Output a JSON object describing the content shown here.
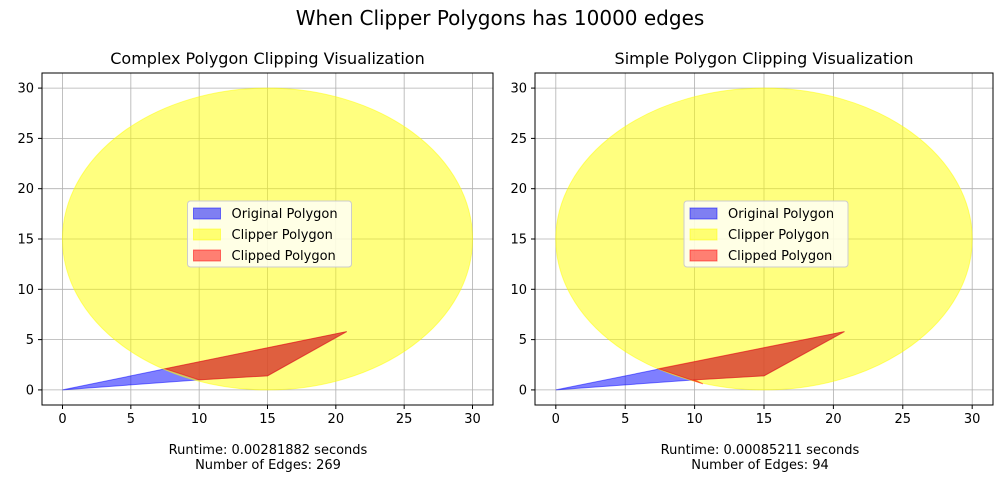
{
  "figure": {
    "suptitle": "When Clipper Polygons has 10000 edges"
  },
  "chart_data": [
    {
      "type": "area",
      "title": "Complex Polygon Clipping Visualization",
      "xlim": [
        -1.5,
        31.5
      ],
      "ylim": [
        -1.5,
        31.5
      ],
      "xticks": [
        0,
        5,
        10,
        15,
        20,
        25,
        30
      ],
      "yticks": [
        0,
        5,
        10,
        15,
        20,
        25,
        30
      ],
      "grid": true,
      "legend_position": "center",
      "series": [
        {
          "name": "Original Polygon",
          "color": "#0000ff",
          "alpha": 0.5,
          "points": [
            [
              0,
              0
            ],
            [
              20.8,
              5.8
            ],
            [
              15,
              1.4
            ],
            [
              10,
              1.0
            ]
          ]
        },
        {
          "name": "Clipper Polygon",
          "color": "#ffff00",
          "alpha": 0.5,
          "shape": "circle",
          "center": [
            15,
            15
          ],
          "radius": 15
        },
        {
          "name": "Clipped Polygon",
          "color": "#ff0000",
          "alpha": 0.5,
          "points": [
            [
              7.5,
              2.1
            ],
            [
              20.8,
              5.8
            ],
            [
              15,
              1.4
            ],
            [
              10,
              1.0
            ]
          ]
        }
      ],
      "caption": {
        "runtime": "Runtime: 0.00281882 seconds",
        "edges": "Number of Edges: 269"
      }
    },
    {
      "type": "area",
      "title": "Simple Polygon Clipping Visualization",
      "xlim": [
        -1.5,
        31.5
      ],
      "ylim": [
        -1.5,
        31.5
      ],
      "xticks": [
        0,
        5,
        10,
        15,
        20,
        25,
        30
      ],
      "yticks": [
        0,
        5,
        10,
        15,
        20,
        25,
        30
      ],
      "grid": true,
      "legend_position": "center",
      "series": [
        {
          "name": "Original Polygon",
          "color": "#0000ff",
          "alpha": 0.5,
          "points": [
            [
              0,
              0
            ],
            [
              20.8,
              5.8
            ],
            [
              15,
              1.4
            ],
            [
              10,
              1.0
            ]
          ]
        },
        {
          "name": "Clipper Polygon",
          "color": "#ffff00",
          "alpha": 0.5,
          "shape": "circle",
          "center": [
            15,
            15
          ],
          "radius": 15
        },
        {
          "name": "Clipped Polygon",
          "color": "#ff0000",
          "alpha": 0.5,
          "points": [
            [
              7.4,
              2.1
            ],
            [
              20.8,
              5.8
            ],
            [
              15,
              1.4
            ],
            [
              10,
              1.0
            ],
            [
              10.6,
              0.6
            ]
          ]
        }
      ],
      "caption": {
        "runtime": "Runtime: 0.00085211 seconds",
        "edges": "Number of Edges: 94"
      }
    }
  ]
}
